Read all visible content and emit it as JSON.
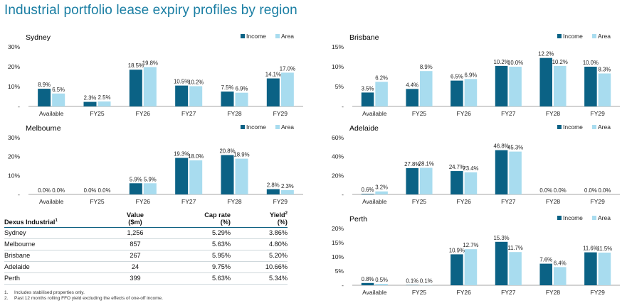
{
  "page": {
    "title": "Industrial portfolio lease expiry profiles by region"
  },
  "colors": {
    "income": "#0b6285",
    "area": "#a8dcef",
    "axis": "#888888",
    "title": "#1a7ea3"
  },
  "chart_data": [
    {
      "id": "sydney",
      "type": "bar",
      "title": "Sydney",
      "categories": [
        "Available",
        "FY25",
        "FY26",
        "FY27",
        "FY28",
        "FY29"
      ],
      "series": [
        {
          "name": "Income",
          "values": [
            8.9,
            2.3,
            18.5,
            10.5,
            7.5,
            14.1
          ]
        },
        {
          "name": "Area",
          "values": [
            6.5,
            2.5,
            19.8,
            10.2,
            6.9,
            17.0
          ]
        }
      ],
      "ylim": [
        0,
        30
      ],
      "yticks": [
        "30%",
        "20%",
        "10%",
        "-"
      ],
      "ytick_values": [
        30,
        20,
        10,
        0
      ],
      "legend": "top-right"
    },
    {
      "id": "brisbane",
      "type": "bar",
      "title": "Brisbane",
      "categories": [
        "Available",
        "FY25",
        "FY26",
        "FY27",
        "FY28",
        "FY29"
      ],
      "series": [
        {
          "name": "Income",
          "values": [
            3.5,
            4.4,
            6.5,
            10.2,
            12.2,
            10.0
          ]
        },
        {
          "name": "Area",
          "values": [
            6.2,
            8.9,
            6.9,
            10.0,
            10.2,
            8.3
          ]
        }
      ],
      "ylim": [
        0,
        15
      ],
      "yticks": [
        "15%",
        "10%",
        "5%",
        "-"
      ],
      "ytick_values": [
        15,
        10,
        5,
        0
      ],
      "legend": "top-right"
    },
    {
      "id": "melbourne",
      "type": "bar",
      "title": "Melbourne",
      "categories": [
        "Available",
        "FY25",
        "FY26",
        "FY27",
        "FY28",
        "FY29"
      ],
      "series": [
        {
          "name": "Income",
          "values": [
            0.0,
            0.0,
            5.9,
            19.3,
            20.8,
            2.8
          ]
        },
        {
          "name": "Area",
          "values": [
            0.0,
            0.0,
            5.9,
            18.0,
            18.9,
            2.3
          ]
        }
      ],
      "ylim": [
        0,
        30
      ],
      "yticks": [
        "30%",
        "20%",
        "10%",
        "-"
      ],
      "ytick_values": [
        30,
        20,
        10,
        0
      ],
      "legend": "top-right"
    },
    {
      "id": "adelaide",
      "type": "bar",
      "title": "Adelaide",
      "categories": [
        "Available",
        "FY25",
        "FY26",
        "FY27",
        "FY28",
        "FY29"
      ],
      "series": [
        {
          "name": "Income",
          "values": [
            0.6,
            27.8,
            24.7,
            46.8,
            0.0,
            0.0
          ]
        },
        {
          "name": "Area",
          "values": [
            3.2,
            28.1,
            23.4,
            45.3,
            0.0,
            0.0
          ]
        }
      ],
      "ylim": [
        0,
        60
      ],
      "yticks": [
        "60%",
        "40%",
        "20%",
        "-"
      ],
      "ytick_values": [
        60,
        40,
        20,
        0
      ],
      "legend": "top-right"
    },
    {
      "id": "perth",
      "type": "bar",
      "title": "Perth",
      "categories": [
        "Available",
        "FY25",
        "FY26",
        "FY27",
        "FY28",
        "FY29"
      ],
      "series": [
        {
          "name": "Income",
          "values": [
            0.8,
            0.1,
            10.9,
            15.3,
            7.6,
            11.6
          ]
        },
        {
          "name": "Area",
          "values": [
            0.5,
            0.1,
            12.7,
            11.7,
            6.4,
            11.5
          ]
        }
      ],
      "ylim": [
        0,
        20
      ],
      "yticks": [
        "20%",
        "15%",
        "10%",
        "5%",
        "-"
      ],
      "ytick_values": [
        20,
        15,
        10,
        5,
        0
      ],
      "legend": "top-right"
    }
  ],
  "table": {
    "headers": {
      "name": "Dexus Industrial",
      "name_sup": "1",
      "value_l1": "Value",
      "value_l2": "($m)",
      "cap_l1": "Cap rate",
      "cap_l2": "(%)",
      "yield_l1": "Yield",
      "yield_sup": "2",
      "yield_l2": "(%)"
    },
    "rows": [
      {
        "region": "Sydney",
        "value": "1,256",
        "cap": "5.29%",
        "yield": "3.86%"
      },
      {
        "region": "Melbourne",
        "value": "857",
        "cap": "5.63%",
        "yield": "4.80%"
      },
      {
        "region": "Brisbane",
        "value": "267",
        "cap": "5.95%",
        "yield": "5.20%"
      },
      {
        "region": "Adelaide",
        "value": "24",
        "cap": "9.75%",
        "yield": "10.66%"
      },
      {
        "region": "Perth",
        "value": "399",
        "cap": "5.63%",
        "yield": "5.34%"
      }
    ]
  },
  "footnotes": [
    {
      "num": "1.",
      "text": "Includes stabilised properties only."
    },
    {
      "num": "2.",
      "text": "Past 12 months rolling FFO yield excluding the effects of one-off income."
    }
  ]
}
